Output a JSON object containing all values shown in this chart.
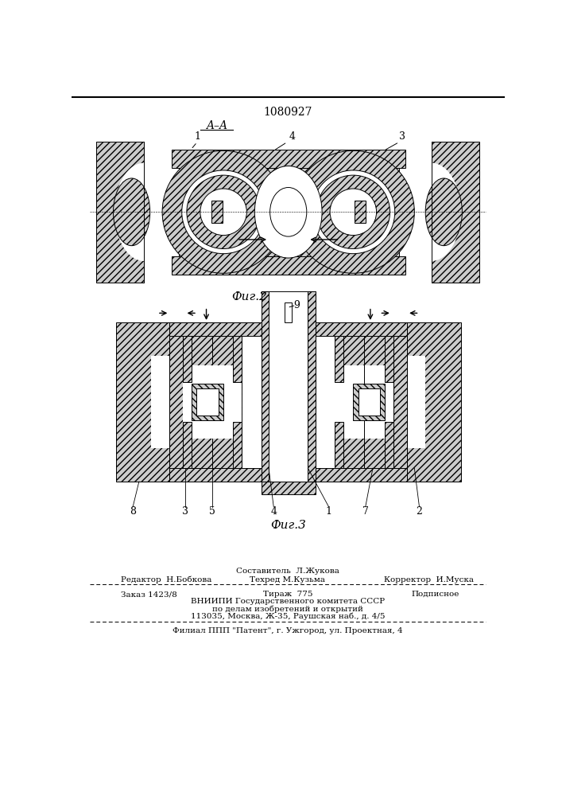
{
  "patent_number": "1080927",
  "fig2_label": "Фиг.2",
  "fig3_label": "Фиг.3",
  "section_label": "A–A",
  "editor_line": "Редактор  Н.Бобкова",
  "composer_line": "Составитель  Л.Жукова",
  "techred_line": "Техред М.Кузьма",
  "corrector_line": "Корректор  И.Муска",
  "order_line": "Заказ 1423/8",
  "tirage_line": "Тираж  775",
  "podpisnoe_line": "Подписное",
  "org_line1": "ВНИИПИ Государственного комитета СССР",
  "org_line2": "по делам изобретений и открытий",
  "org_line3": "113035, Москва, Ж-35, Раушская наб., д. 4/5",
  "filial_line": "Филиал ППП \"Патент\", г. Ужгород, ул. Проектная, 4",
  "bg_color": "#ffffff"
}
